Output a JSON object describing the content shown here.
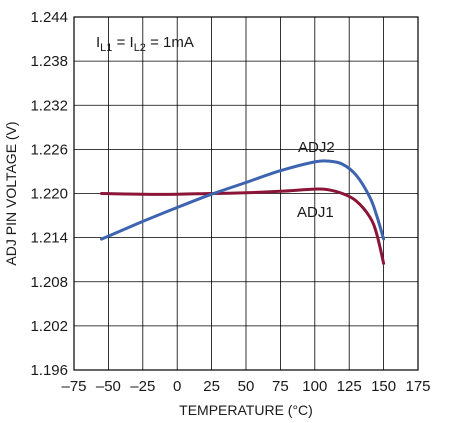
{
  "chart_data": {
    "type": "line",
    "title": "",
    "xlabel": "TEMPERATURE (°C)",
    "ylabel": "ADJ PIN VOLTAGE (V)",
    "xlim": [
      -75,
      175
    ],
    "ylim": [
      1.196,
      1.244
    ],
    "x_ticks": [
      "–75",
      "–50",
      "–25",
      "0",
      "25",
      "50",
      "75",
      "100",
      "125",
      "150",
      "175"
    ],
    "y_ticks": [
      "1.196",
      "1.202",
      "1.208",
      "1.214",
      "1.220",
      "1.226",
      "1.232",
      "1.238",
      "1.244"
    ],
    "grid": true,
    "annotation": {
      "base": "I",
      "sub1": "L1",
      "mid": " = I",
      "sub2": "L2",
      "tail": " = 1mA"
    },
    "series": [
      {
        "name": "ADJ1",
        "color": "#8b1538",
        "x": [
          -55,
          -25,
          0,
          25,
          50,
          75,
          100,
          110,
          120,
          130,
          140,
          145,
          150
        ],
        "y": [
          1.22,
          1.2199,
          1.2199,
          1.22,
          1.2201,
          1.2203,
          1.2206,
          1.2205,
          1.22,
          1.219,
          1.2168,
          1.2145,
          1.2105
        ]
      },
      {
        "name": "ADJ2",
        "color": "#3d64b0",
        "x": [
          -55,
          -25,
          0,
          25,
          50,
          75,
          100,
          110,
          120,
          130,
          140,
          145,
          150
        ],
        "y": [
          1.2138,
          1.2162,
          1.2181,
          1.2199,
          1.2215,
          1.2231,
          1.2243,
          1.2244,
          1.224,
          1.2225,
          1.2195,
          1.217,
          1.2138
        ]
      }
    ]
  }
}
